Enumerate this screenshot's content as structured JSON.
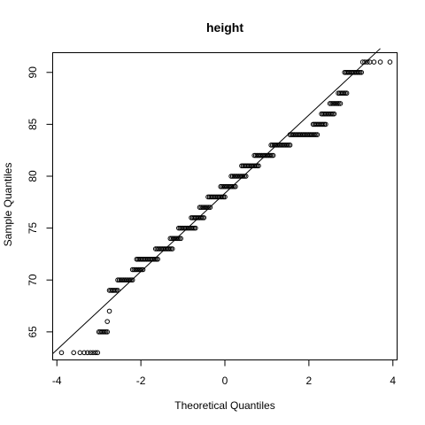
{
  "chart_data": {
    "type": "scatter",
    "title": "height",
    "xlabel": "Theoretical Quantiles",
    "ylabel": "Sample Quantiles",
    "xlim": [
      -4.1,
      4.1
    ],
    "ylim": [
      62.3,
      91.9
    ],
    "xticks": [
      -4,
      -2,
      0,
      2,
      4
    ],
    "yticks": [
      65,
      70,
      75,
      80,
      85,
      90
    ],
    "grid": false,
    "legend": "none",
    "reference_line": {
      "x1": -4.1,
      "y1": 62.9,
      "x2": 3.7,
      "y2": 92.3
    },
    "outliers": [
      {
        "x": -3.89,
        "y": 63
      },
      {
        "x": -3.6,
        "y": 63
      },
      {
        "x": -3.45,
        "y": 63
      },
      {
        "x": -3.35,
        "y": 63
      },
      {
        "x": -3.27,
        "y": 63
      },
      {
        "x": -3.2,
        "y": 63
      },
      {
        "x": -3.14,
        "y": 63
      },
      {
        "x": -3.08,
        "y": 63
      },
      {
        "x": -3.03,
        "y": 63
      },
      {
        "x": -2.8,
        "y": 66
      },
      {
        "x": -2.75,
        "y": 67
      },
      {
        "x": 3.28,
        "y": 91
      },
      {
        "x": 3.33,
        "y": 91
      },
      {
        "x": 3.39,
        "y": 91
      },
      {
        "x": 3.45,
        "y": 91
      },
      {
        "x": 3.55,
        "y": 91
      },
      {
        "x": 3.7,
        "y": 91
      },
      {
        "x": 3.93,
        "y": 91
      }
    ],
    "runs": [
      {
        "y": 65,
        "x_start": -3.0,
        "x_end": -2.8
      },
      {
        "y": 69,
        "x_start": -2.75,
        "x_end": -2.55
      },
      {
        "y": 70,
        "x_start": -2.55,
        "x_end": -2.2
      },
      {
        "y": 71,
        "x_start": -2.2,
        "x_end": -1.95
      },
      {
        "y": 72,
        "x_start": -2.1,
        "x_end": -1.6
      },
      {
        "y": 73,
        "x_start": -1.65,
        "x_end": -1.25
      },
      {
        "y": 74,
        "x_start": -1.3,
        "x_end": -1.05
      },
      {
        "y": 75,
        "x_start": -1.1,
        "x_end": -0.7
      },
      {
        "y": 76,
        "x_start": -0.8,
        "x_end": -0.5
      },
      {
        "y": 77,
        "x_start": -0.6,
        "x_end": -0.35
      },
      {
        "y": 78,
        "x_start": -0.4,
        "x_end": 0.0
      },
      {
        "y": 79,
        "x_start": -0.1,
        "x_end": 0.25
      },
      {
        "y": 80,
        "x_start": 0.15,
        "x_end": 0.5
      },
      {
        "y": 81,
        "x_start": 0.4,
        "x_end": 0.8
      },
      {
        "y": 82,
        "x_start": 0.7,
        "x_end": 1.15
      },
      {
        "y": 83,
        "x_start": 1.1,
        "x_end": 1.55
      },
      {
        "y": 84,
        "x_start": 1.55,
        "x_end": 2.2
      },
      {
        "y": 85,
        "x_start": 2.1,
        "x_end": 2.4
      },
      {
        "y": 86,
        "x_start": 2.3,
        "x_end": 2.6
      },
      {
        "y": 87,
        "x_start": 2.5,
        "x_end": 2.75
      },
      {
        "y": 88,
        "x_start": 2.7,
        "x_end": 2.9
      },
      {
        "y": 90,
        "x_start": 2.85,
        "x_end": 3.25
      }
    ]
  }
}
